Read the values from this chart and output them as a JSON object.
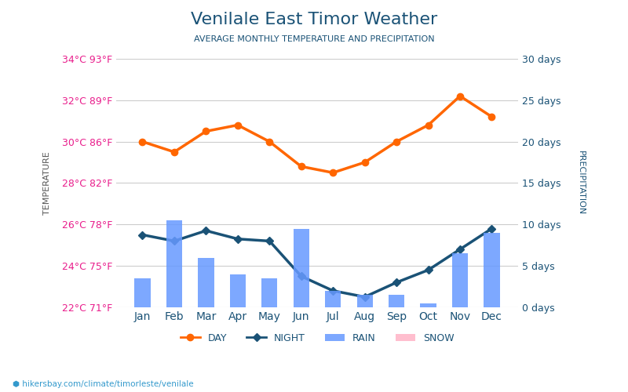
{
  "title": "Venilale East Timor Weather",
  "subtitle": "AVERAGE MONTHLY TEMPERATURE AND PRECIPITATION",
  "months": [
    "Jan",
    "Feb",
    "Mar",
    "Apr",
    "May",
    "Jun",
    "Jul",
    "Aug",
    "Sep",
    "Oct",
    "Nov",
    "Dec"
  ],
  "day_temp": [
    30.0,
    29.5,
    30.5,
    30.8,
    30.0,
    28.8,
    28.5,
    29.0,
    30.0,
    30.8,
    32.2,
    31.2
  ],
  "night_temp": [
    25.5,
    25.2,
    25.7,
    25.3,
    25.2,
    23.5,
    22.8,
    22.5,
    23.2,
    23.8,
    24.8,
    25.8
  ],
  "rain_days": [
    3.5,
    10.5,
    6.0,
    4.0,
    3.5,
    9.5,
    2.0,
    1.5,
    1.5,
    0.5,
    6.5,
    9.0
  ],
  "temp_ylim_min": 22,
  "temp_ylim_max": 34,
  "precip_ylim_min": 0,
  "precip_ylim_max": 30,
  "temp_ticks": [
    22,
    24,
    26,
    28,
    30,
    32,
    34
  ],
  "temp_labels_left": [
    "22°C 71°F",
    "24°C 75°F",
    "26°C 78°F",
    "28°C 82°F",
    "30°C 86°F",
    "32°C 89°F",
    "34°C 93°F"
  ],
  "precip_ticks": [
    0,
    5,
    10,
    15,
    20,
    25,
    30
  ],
  "precip_labels_right": [
    "0 days",
    "5 days",
    "10 days",
    "15 days",
    "20 days",
    "25 days",
    "30 days"
  ],
  "day_color": "#ff6600",
  "night_color": "#1a5276",
  "bar_color": "#6699ff",
  "title_color": "#1a5276",
  "subtitle_color": "#1a5276",
  "left_label_color": "#e91e8c",
  "right_label_color": "#1a5276",
  "axis_label_color": "#555555",
  "background_color": "#ffffff",
  "footer_text": "hikersbay.com/climate/timorleste/venilale",
  "legend_day": "DAY",
  "legend_night": "NIGHT",
  "legend_rain": "RAIN",
  "legend_snow": "SNOW"
}
